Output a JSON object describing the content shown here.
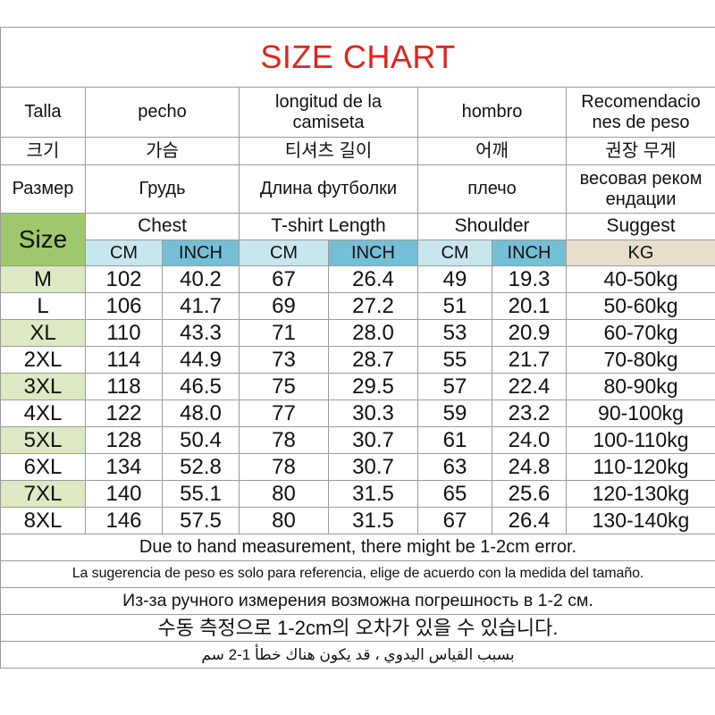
{
  "title": "SIZE CHART",
  "spanish": {
    "size": "Talla",
    "chest": "pecho",
    "length": "longitud de la camiseta",
    "shoulder": "hombro",
    "suggest": "Recomendacio nes de peso"
  },
  "korean": {
    "size": "크기",
    "chest": "가슴",
    "length": "티셔츠 길이",
    "shoulder": "어깨",
    "suggest": "권장 무게"
  },
  "russian": {
    "size": "Размер",
    "chest": "Грудь",
    "length": "Длина футболки",
    "shoulder": "плечо",
    "suggest": "весовая реком ендации"
  },
  "english": {
    "size": "Size",
    "chest": "Chest",
    "length": "T-shirt Length",
    "shoulder": "Shoulder",
    "suggest": "Suggest"
  },
  "units": {
    "cm": "CM",
    "inch": "INCH",
    "kg": "KG"
  },
  "rows": [
    {
      "size": "M",
      "chest_cm": "102",
      "chest_in": "40.2",
      "length_cm": "67",
      "length_in": "26.4",
      "shoulder_cm": "49",
      "shoulder_in": "19.3",
      "weight": "40-50kg"
    },
    {
      "size": "L",
      "chest_cm": "106",
      "chest_in": "41.7",
      "length_cm": "69",
      "length_in": "27.2",
      "shoulder_cm": "51",
      "shoulder_in": "20.1",
      "weight": "50-60kg"
    },
    {
      "size": "XL",
      "chest_cm": "110",
      "chest_in": "43.3",
      "length_cm": "71",
      "length_in": "28.0",
      "shoulder_cm": "53",
      "shoulder_in": "20.9",
      "weight": "60-70kg"
    },
    {
      "size": "2XL",
      "chest_cm": "114",
      "chest_in": "44.9",
      "length_cm": "73",
      "length_in": "28.7",
      "shoulder_cm": "55",
      "shoulder_in": "21.7",
      "weight": "70-80kg"
    },
    {
      "size": "3XL",
      "chest_cm": "118",
      "chest_in": "46.5",
      "length_cm": "75",
      "length_in": "29.5",
      "shoulder_cm": "57",
      "shoulder_in": "22.4",
      "weight": "80-90kg"
    },
    {
      "size": "4XL",
      "chest_cm": "122",
      "chest_in": "48.0",
      "length_cm": "77",
      "length_in": "30.3",
      "shoulder_cm": "59",
      "shoulder_in": "23.2",
      "weight": "90-100kg"
    },
    {
      "size": "5XL",
      "chest_cm": "128",
      "chest_in": "50.4",
      "length_cm": "78",
      "length_in": "30.7",
      "shoulder_cm": "61",
      "shoulder_in": "24.0",
      "weight": "100-110kg"
    },
    {
      "size": "6XL",
      "chest_cm": "134",
      "chest_in": "52.8",
      "length_cm": "78",
      "length_in": "30.7",
      "shoulder_cm": "63",
      "shoulder_in": "24.8",
      "weight": "110-120kg"
    },
    {
      "size": "7XL",
      "chest_cm": "140",
      "chest_in": "55.1",
      "length_cm": "80",
      "length_in": "31.5",
      "shoulder_cm": "65",
      "shoulder_in": "25.6",
      "weight": "120-130kg"
    },
    {
      "size": "8XL",
      "chest_cm": "146",
      "chest_in": "57.5",
      "length_cm": "80",
      "length_in": "31.5",
      "shoulder_cm": "67",
      "shoulder_in": "26.4",
      "weight": "130-140kg"
    }
  ],
  "notes": {
    "en": "Due to hand measurement, there might be 1-2cm error.",
    "es": "La sugerencia de peso es solo para referencia, elige de acuerdo con la medida del tamaño.",
    "ru": "Из-за ручного измерения возможна погрешность в 1-2 см.",
    "ko": "수동 측정으로 1-2cm의 오차가 있을 수 있습니다.",
    "ar": "بسبب القياس اليدوي ، قد يكون هناك خطأ 1-2 سم"
  },
  "colors": {
    "title_red": "#e0231c",
    "size_green": "#9fc86d",
    "row_green": "#dce9c2",
    "unit_light_blue": "#c8e6ee",
    "unit_dark_blue": "#74bfd6",
    "unit_beige": "#e7dfcb"
  }
}
